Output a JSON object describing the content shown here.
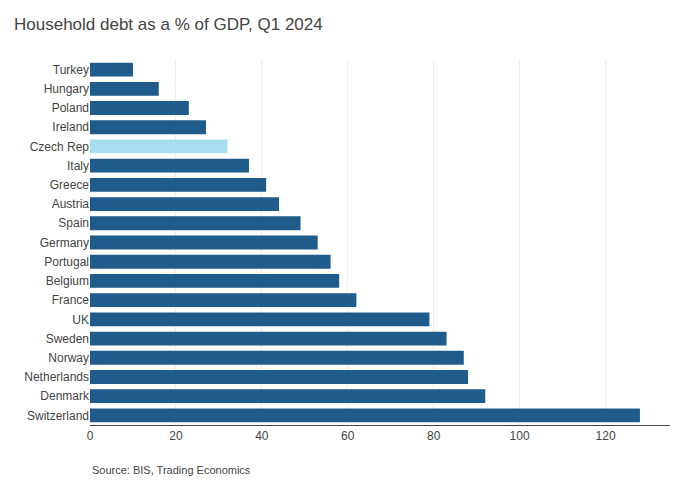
{
  "chart_data": {
    "type": "bar",
    "orientation": "horizontal",
    "title": "Household debt as a % of GDP, Q1 2024",
    "annotations": [
      "Source: BIS, Trading Economics"
    ],
    "categories": [
      "Switzerland",
      "Denmark",
      "Netherlands",
      "Norway",
      "Sweden",
      "UK",
      "France",
      "Belgium",
      "Portugal",
      "Germany",
      "Spain",
      "Austria",
      "Greece",
      "Italy",
      "Czech Rep",
      "Ireland",
      "Poland",
      "Hungary",
      "Turkey"
    ],
    "values": [
      128,
      92,
      88,
      87,
      83,
      79,
      62,
      58,
      56,
      53,
      49,
      44,
      41,
      37,
      32,
      27,
      23,
      16,
      10
    ],
    "colors": [
      "#1f5c8b",
      "#1f5c8b",
      "#1f5c8b",
      "#1f5c8b",
      "#1f5c8b",
      "#1f5c8b",
      "#1f5c8b",
      "#1f5c8b",
      "#1f5c8b",
      "#1f5c8b",
      "#1f5c8b",
      "#1f5c8b",
      "#1f5c8b",
      "#1f5c8b",
      "#a8dff0",
      "#1f5c8b",
      "#1f5c8b",
      "#1f5c8b",
      "#1f5c8b"
    ],
    "xlim": [
      0,
      135
    ],
    "xticks": [
      0,
      20,
      40,
      60,
      80,
      100,
      120
    ],
    "grid": true
  }
}
